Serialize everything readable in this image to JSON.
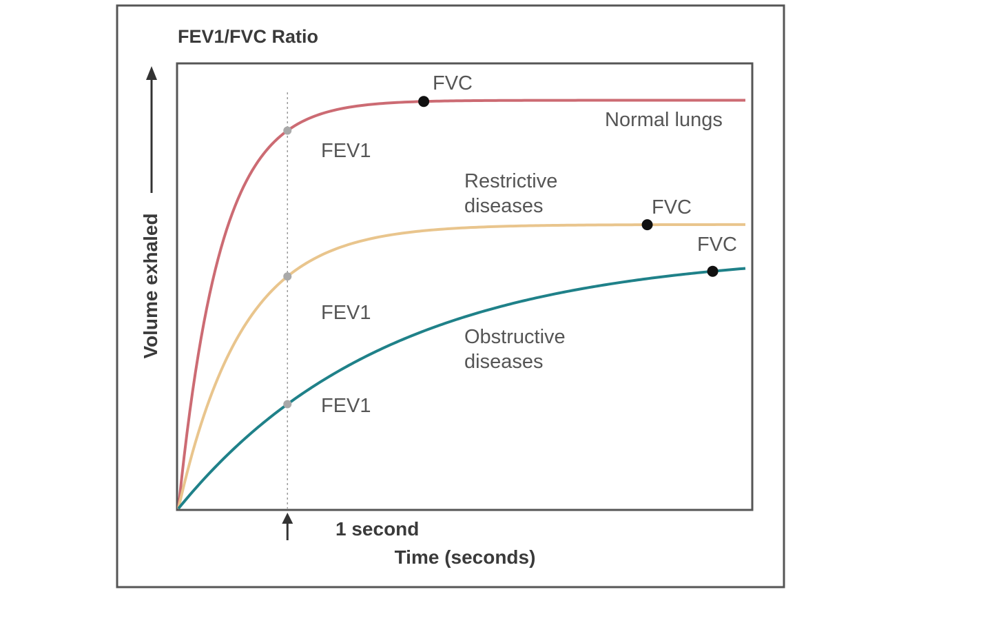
{
  "chart_data": {
    "type": "line",
    "title": "FEV1/FVC Ratio",
    "xlabel": "Time (seconds)",
    "ylabel": "Volume exhaled",
    "xlim": [
      0,
      5.2
    ],
    "ylim": [
      0,
      1.0
    ],
    "grid": false,
    "annotations": {
      "one_second": "1 second",
      "fev1_label": "FEV1",
      "fvc_label": "FVC"
    },
    "series": [
      {
        "name": "Normal lungs",
        "color": "#cc6b73",
        "plateau": 0.92,
        "rate": 2.6,
        "fev1": {
          "x": 1,
          "y": 0.86
        },
        "fvc": {
          "x": 2.25,
          "y": 0.92
        },
        "label_lines": [
          "Normal lungs"
        ]
      },
      {
        "name": "Restrictive diseases",
        "color": "#e9c58d",
        "plateau": 0.64,
        "rate": 1.7,
        "fev1": {
          "x": 1,
          "y": 0.48
        },
        "fvc": {
          "x": 4.3,
          "y": 0.64
        },
        "label_lines": [
          "Restrictive",
          "diseases"
        ]
      },
      {
        "name": "Obstructive diseases",
        "color": "#1f8189",
        "plateau": 0.58,
        "rate": 0.52,
        "fev1": {
          "x": 1,
          "y": 0.27
        },
        "fvc": {
          "x": 4.9,
          "y": 0.56
        },
        "label_lines": [
          "Obstructive",
          "diseases"
        ]
      }
    ]
  }
}
